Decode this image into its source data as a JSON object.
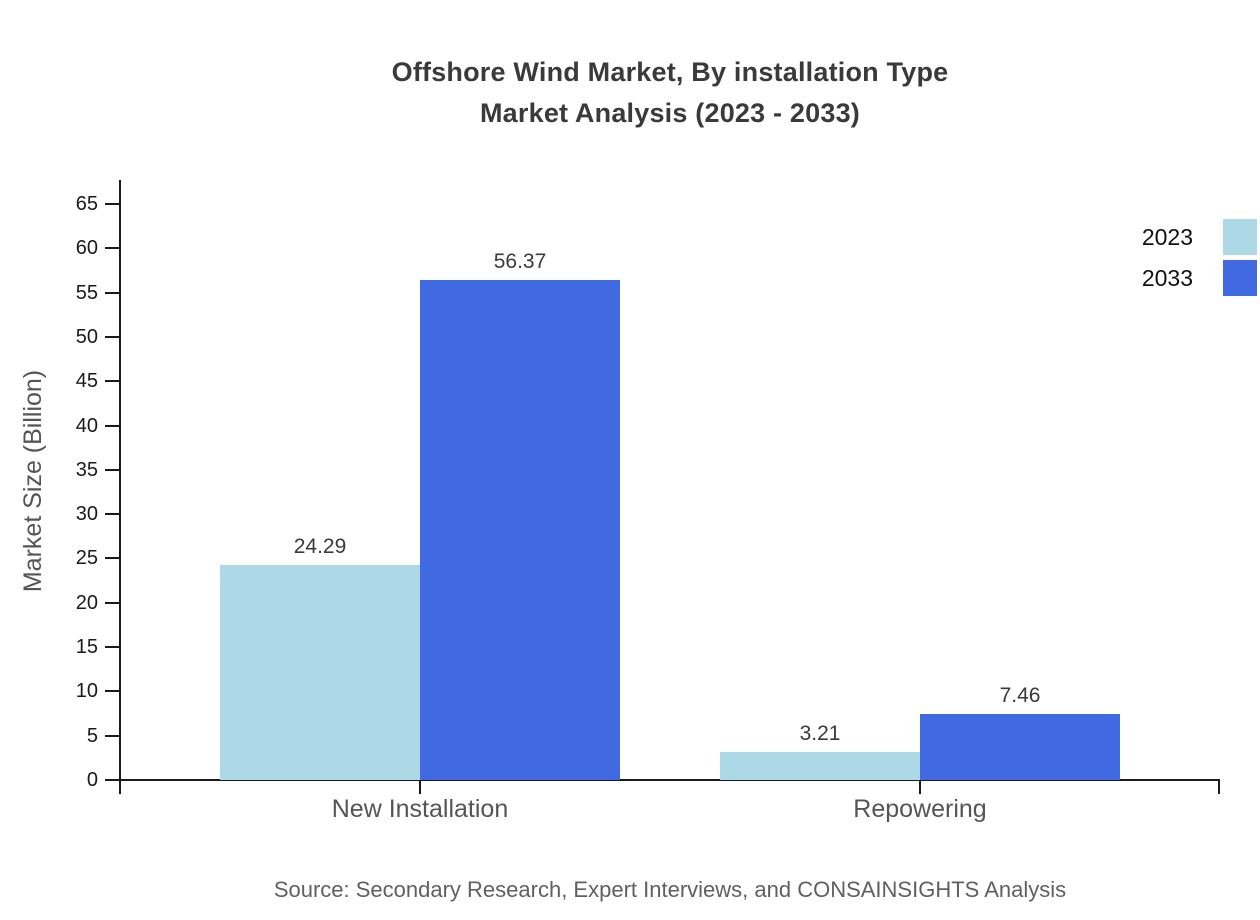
{
  "title": {
    "line1": "Offshore Wind Market, By installation Type",
    "line2": "Market Analysis (2023 - 2033)"
  },
  "chart_data": {
    "type": "bar",
    "categories": [
      "New Installation",
      "Repowering"
    ],
    "series": [
      {
        "name": "2023",
        "color": "#ADD8E6",
        "values": [
          24.29,
          3.21
        ]
      },
      {
        "name": "2033",
        "color": "#4169E1",
        "values": [
          56.37,
          7.46
        ]
      }
    ],
    "value_labels": [
      "24.29",
      "56.37",
      "3.21",
      "7.46"
    ],
    "title": "Offshore Wind Market, By installation Type Market Analysis (2023 - 2033)",
    "xlabel": "",
    "ylabel": "Market Size (Billion)",
    "ylim": [
      0,
      65
    ],
    "ytick_step": 5,
    "ytick_labels": [
      "0",
      "5",
      "10",
      "15",
      "20",
      "25",
      "30",
      "35",
      "40",
      "45",
      "50",
      "55",
      "60",
      "65"
    ],
    "grid": false,
    "legend_position": "top-right",
    "legend_entries": [
      "2023",
      "2033"
    ]
  },
  "source": {
    "text": "Source: Secondary Research, Expert Interviews, and CONSAINSIGHTS Analysis"
  },
  "colors": {
    "series_2023": "#ADD8E6",
    "series_2033": "#4169E1",
    "title_text": "#3a3a3a",
    "tick_text": "#1a1a1a",
    "muted_text": "#555555",
    "source_text": "#606060",
    "axis_line": "#1a1a1a",
    "background": "#ffffff"
  }
}
